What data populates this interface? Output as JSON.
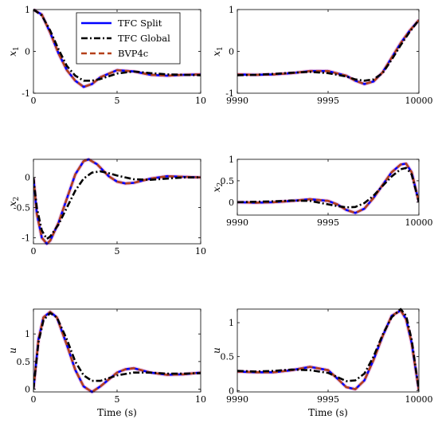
{
  "colors": {
    "tfc_split": "#0000ff",
    "tfc_global": "#000000",
    "bvp4c": "#b5401a",
    "bvp4c_halo": "#e6a0d8",
    "axes": "#000000",
    "background": "#ffffff"
  },
  "chart_data": [
    {
      "type": "line",
      "ylabel": "x_1",
      "xlim": [
        0,
        10
      ],
      "ylim": [
        -1,
        1
      ],
      "xticks": [
        0,
        5,
        10
      ],
      "yticks": [
        -1,
        0,
        1
      ],
      "x_tick_labels": [
        "0",
        "5",
        "10"
      ],
      "y_tick_labels": [
        "-1",
        "0",
        "1"
      ],
      "xlabel": "",
      "grid": false,
      "legend": {
        "location": "top-right",
        "entries": [
          "TFC Split",
          "TFC Global",
          "BVP4c"
        ]
      },
      "series": [
        {
          "name": "TFC Split",
          "style": "solid",
          "x": [
            0,
            0.5,
            1,
            1.5,
            2,
            2.5,
            3,
            3.5,
            4,
            5,
            6,
            7,
            8,
            9,
            10
          ],
          "y": [
            1,
            0.88,
            0.45,
            -0.05,
            -0.45,
            -0.7,
            -0.85,
            -0.78,
            -0.62,
            -0.45,
            -0.48,
            -0.56,
            -0.58,
            -0.56,
            -0.55
          ]
        },
        {
          "name": "TFC Global",
          "style": "dashdot",
          "x": [
            0,
            0.5,
            1,
            1.5,
            2,
            2.5,
            3,
            3.5,
            4,
            5,
            6,
            7,
            8,
            9,
            10
          ],
          "y": [
            1,
            0.86,
            0.5,
            0.05,
            -0.35,
            -0.58,
            -0.7,
            -0.7,
            -0.66,
            -0.53,
            -0.48,
            -0.52,
            -0.55,
            -0.56,
            -0.57
          ]
        },
        {
          "name": "BVP4c",
          "style": "dashed",
          "x": [
            0,
            0.5,
            1,
            1.5,
            2,
            2.5,
            3,
            3.5,
            4,
            5,
            6,
            7,
            8,
            9,
            10
          ],
          "y": [
            1,
            0.88,
            0.45,
            -0.05,
            -0.45,
            -0.7,
            -0.85,
            -0.78,
            -0.62,
            -0.45,
            -0.48,
            -0.56,
            -0.58,
            -0.56,
            -0.55
          ]
        }
      ]
    },
    {
      "type": "line",
      "ylabel": "x_1",
      "xlim": [
        9990,
        10000
      ],
      "ylim": [
        -1,
        1
      ],
      "xticks": [
        9990,
        9995,
        10000
      ],
      "yticks": [
        -1,
        0,
        1
      ],
      "x_tick_labels": [
        "9990",
        "9995",
        "10000"
      ],
      "y_tick_labels": [
        "-1",
        "0",
        "1"
      ],
      "xlabel": "",
      "grid": false,
      "series": [
        {
          "name": "TFC Split",
          "style": "solid",
          "x": [
            9990,
            9991,
            9992,
            9993,
            9994,
            9995,
            9996,
            9996.5,
            9997,
            9997.5,
            9998,
            9998.5,
            9999,
            9999.5,
            10000
          ],
          "y": [
            -0.55,
            -0.56,
            -0.55,
            -0.52,
            -0.47,
            -0.47,
            -0.58,
            -0.7,
            -0.78,
            -0.72,
            -0.5,
            -0.15,
            0.2,
            0.5,
            0.75
          ]
        },
        {
          "name": "TFC Global",
          "style": "dashdot",
          "x": [
            9990,
            9991,
            9992,
            9993,
            9994,
            9995,
            9996,
            9996.5,
            9997,
            9997.5,
            9998,
            9998.5,
            9999,
            9999.5,
            10000
          ],
          "y": [
            -0.57,
            -0.56,
            -0.54,
            -0.51,
            -0.49,
            -0.52,
            -0.6,
            -0.67,
            -0.7,
            -0.67,
            -0.52,
            -0.2,
            0.15,
            0.47,
            0.75
          ]
        },
        {
          "name": "BVP4c",
          "style": "dashed",
          "x": [
            9990,
            9991,
            9992,
            9993,
            9994,
            9995,
            9996,
            9996.5,
            9997,
            9997.5,
            9998,
            9998.5,
            9999,
            9999.5,
            10000
          ],
          "y": [
            -0.55,
            -0.56,
            -0.55,
            -0.52,
            -0.47,
            -0.47,
            -0.58,
            -0.7,
            -0.78,
            -0.72,
            -0.5,
            -0.15,
            0.2,
            0.5,
            0.75
          ]
        }
      ]
    },
    {
      "type": "line",
      "ylabel": "x_2",
      "xlim": [
        0,
        10
      ],
      "ylim": [
        -1.1,
        0.3
      ],
      "xticks": [
        0,
        5,
        10
      ],
      "yticks": [
        -1,
        -0.5,
        0
      ],
      "x_tick_labels": [
        "0",
        "5",
        "10"
      ],
      "y_tick_labels": [
        "-1",
        "-0.5",
        "0"
      ],
      "xlabel": "",
      "grid": false,
      "series": [
        {
          "name": "TFC Split",
          "style": "solid",
          "x": [
            0,
            0.2,
            0.5,
            0.8,
            1,
            1.5,
            2,
            2.5,
            3,
            3.3,
            3.8,
            4.5,
            5,
            5.5,
            6,
            7,
            8,
            9,
            10
          ],
          "y": [
            0,
            -0.6,
            -1.0,
            -1.1,
            -1.05,
            -0.75,
            -0.35,
            0.05,
            0.27,
            0.3,
            0.22,
            0.02,
            -0.07,
            -0.1,
            -0.09,
            -0.02,
            0.02,
            0.01,
            0.0
          ]
        },
        {
          "name": "TFC Global",
          "style": "dashdot",
          "x": [
            0,
            0.2,
            0.5,
            0.8,
            1,
            1.5,
            2,
            2.5,
            3,
            3.5,
            4,
            4.5,
            5,
            6,
            7,
            8,
            9,
            10
          ],
          "y": [
            0,
            -0.5,
            -0.88,
            -1.02,
            -0.98,
            -0.78,
            -0.5,
            -0.22,
            -0.02,
            0.08,
            0.1,
            0.07,
            0.03,
            -0.03,
            -0.04,
            -0.02,
            0.0,
            0.0
          ]
        },
        {
          "name": "BVP4c",
          "style": "dashed",
          "x": [
            0,
            0.2,
            0.5,
            0.8,
            1,
            1.5,
            2,
            2.5,
            3,
            3.3,
            3.8,
            4.5,
            5,
            5.5,
            6,
            7,
            8,
            9,
            10
          ],
          "y": [
            0,
            -0.6,
            -1.0,
            -1.1,
            -1.05,
            -0.75,
            -0.35,
            0.05,
            0.27,
            0.3,
            0.22,
            0.02,
            -0.07,
            -0.1,
            -0.09,
            -0.02,
            0.02,
            0.01,
            0.0
          ]
        }
      ]
    },
    {
      "type": "line",
      "ylabel": "x_2",
      "xlim": [
        9990,
        10000
      ],
      "ylim": [
        -0.3,
        1
      ],
      "xticks": [
        9990,
        9995,
        10000
      ],
      "yticks": [
        0,
        0.5,
        1
      ],
      "x_tick_labels": [
        "9990",
        "9995",
        "10000"
      ],
      "y_tick_labels": [
        "0",
        "0.5",
        "1"
      ],
      "xlabel": "",
      "grid": false,
      "series": [
        {
          "name": "TFC Split",
          "style": "solid",
          "x": [
            9990,
            9991,
            9992,
            9993,
            9994,
            9995,
            9995.5,
            9996,
            9996.5,
            9997,
            9997.5,
            9998,
            9998.5,
            9999,
            9999.3,
            9999.6,
            10000
          ],
          "y": [
            0,
            -0.01,
            0,
            0.03,
            0.07,
            0.03,
            -0.05,
            -0.18,
            -0.25,
            -0.15,
            0.1,
            0.4,
            0.7,
            0.88,
            0.9,
            0.7,
            0.0
          ]
        },
        {
          "name": "TFC Global",
          "style": "dashdot",
          "x": [
            9990,
            9991,
            9992,
            9993,
            9994,
            9995,
            9995.5,
            9996,
            9996.5,
            9997,
            9997.5,
            9998,
            9998.5,
            9999,
            9999.3,
            9999.6,
            10000
          ],
          "y": [
            0,
            0.01,
            0.02,
            0.04,
            0.03,
            -0.05,
            -0.09,
            -0.12,
            -0.11,
            -0.02,
            0.15,
            0.38,
            0.6,
            0.77,
            0.8,
            0.65,
            0.0
          ]
        },
        {
          "name": "BVP4c",
          "style": "dashed",
          "x": [
            9990,
            9991,
            9992,
            9993,
            9994,
            9995,
            9995.5,
            9996,
            9996.5,
            9997,
            9997.5,
            9998,
            9998.5,
            9999,
            9999.3,
            9999.6,
            10000
          ],
          "y": [
            0,
            -0.01,
            0,
            0.03,
            0.07,
            0.03,
            -0.05,
            -0.18,
            -0.25,
            -0.15,
            0.1,
            0.4,
            0.7,
            0.88,
            0.9,
            0.7,
            0.0
          ]
        }
      ]
    },
    {
      "type": "line",
      "ylabel": "u",
      "xlim": [
        0,
        10
      ],
      "ylim": [
        -0.05,
        1.45
      ],
      "xticks": [
        0,
        5,
        10
      ],
      "yticks": [
        0,
        0.5,
        1
      ],
      "x_tick_labels": [
        "0",
        "5",
        "10"
      ],
      "y_tick_labels": [
        "0",
        "0.5",
        "1"
      ],
      "xlabel": "Time (s)",
      "grid": false,
      "series": [
        {
          "name": "TFC Split",
          "style": "solid",
          "x": [
            0,
            0.3,
            0.6,
            1,
            1.4,
            2,
            2.5,
            3,
            3.5,
            4,
            5,
            5.5,
            6,
            7,
            8,
            9,
            10
          ],
          "y": [
            0,
            0.9,
            1.3,
            1.4,
            1.3,
            0.8,
            0.35,
            0.05,
            -0.05,
            0.05,
            0.3,
            0.36,
            0.38,
            0.3,
            0.26,
            0.27,
            0.3
          ]
        },
        {
          "name": "TFC Global",
          "style": "dashdot",
          "x": [
            0,
            0.3,
            0.6,
            1,
            1.4,
            2,
            2.5,
            3,
            3.5,
            4,
            5,
            6,
            7,
            8,
            9,
            10
          ],
          "y": [
            0,
            0.85,
            1.25,
            1.38,
            1.3,
            0.9,
            0.5,
            0.25,
            0.15,
            0.15,
            0.25,
            0.3,
            0.3,
            0.28,
            0.28,
            0.29
          ]
        },
        {
          "name": "BVP4c",
          "style": "dashed",
          "x": [
            0,
            0.3,
            0.6,
            1,
            1.4,
            2,
            2.5,
            3,
            3.5,
            4,
            5,
            5.5,
            6,
            7,
            8,
            9,
            10
          ],
          "y": [
            0,
            0.9,
            1.3,
            1.4,
            1.3,
            0.8,
            0.35,
            0.05,
            -0.05,
            0.05,
            0.3,
            0.36,
            0.38,
            0.3,
            0.26,
            0.27,
            0.3
          ]
        }
      ]
    },
    {
      "type": "line",
      "ylabel": "u",
      "xlim": [
        9990,
        10000
      ],
      "ylim": [
        -0.02,
        1.2
      ],
      "xticks": [
        9990,
        9995,
        10000
      ],
      "yticks": [
        0,
        0.5,
        1
      ],
      "x_tick_labels": [
        "9990",
        "9995",
        "10000"
      ],
      "y_tick_labels": [
        "0",
        "0.5",
        "1"
      ],
      "xlabel": "Time (s)",
      "grid": false,
      "series": [
        {
          "name": "TFC Split",
          "style": "solid",
          "x": [
            9990,
            9991,
            9992,
            9993,
            9994,
            9995,
            9995.5,
            9996,
            9996.5,
            9997,
            9997.5,
            9998,
            9998.5,
            9999,
            9999.3,
            9999.6,
            10000
          ],
          "y": [
            0.28,
            0.27,
            0.27,
            0.3,
            0.35,
            0.3,
            0.18,
            0.05,
            0.02,
            0.15,
            0.45,
            0.8,
            1.1,
            1.18,
            1.05,
            0.7,
            0.0
          ]
        },
        {
          "name": "TFC Global",
          "style": "dashdot",
          "x": [
            9990,
            9991,
            9992,
            9993,
            9994,
            9995,
            9995.5,
            9996,
            9996.5,
            9997,
            9997.5,
            9998,
            9998.5,
            9999,
            9999.3,
            9999.6,
            10000
          ],
          "y": [
            0.29,
            0.28,
            0.29,
            0.31,
            0.3,
            0.26,
            0.2,
            0.14,
            0.15,
            0.25,
            0.5,
            0.82,
            1.08,
            1.2,
            1.1,
            0.75,
            0.0
          ]
        },
        {
          "name": "BVP4c",
          "style": "dashed",
          "x": [
            9990,
            9991,
            9992,
            9993,
            9994,
            9995,
            9995.5,
            9996,
            9996.5,
            9997,
            9997.5,
            9998,
            9998.5,
            9999,
            9999.3,
            9999.6,
            10000
          ],
          "y": [
            0.28,
            0.27,
            0.27,
            0.3,
            0.35,
            0.3,
            0.18,
            0.05,
            0.02,
            0.15,
            0.45,
            0.8,
            1.1,
            1.18,
            1.05,
            0.7,
            0.0
          ]
        }
      ]
    }
  ]
}
